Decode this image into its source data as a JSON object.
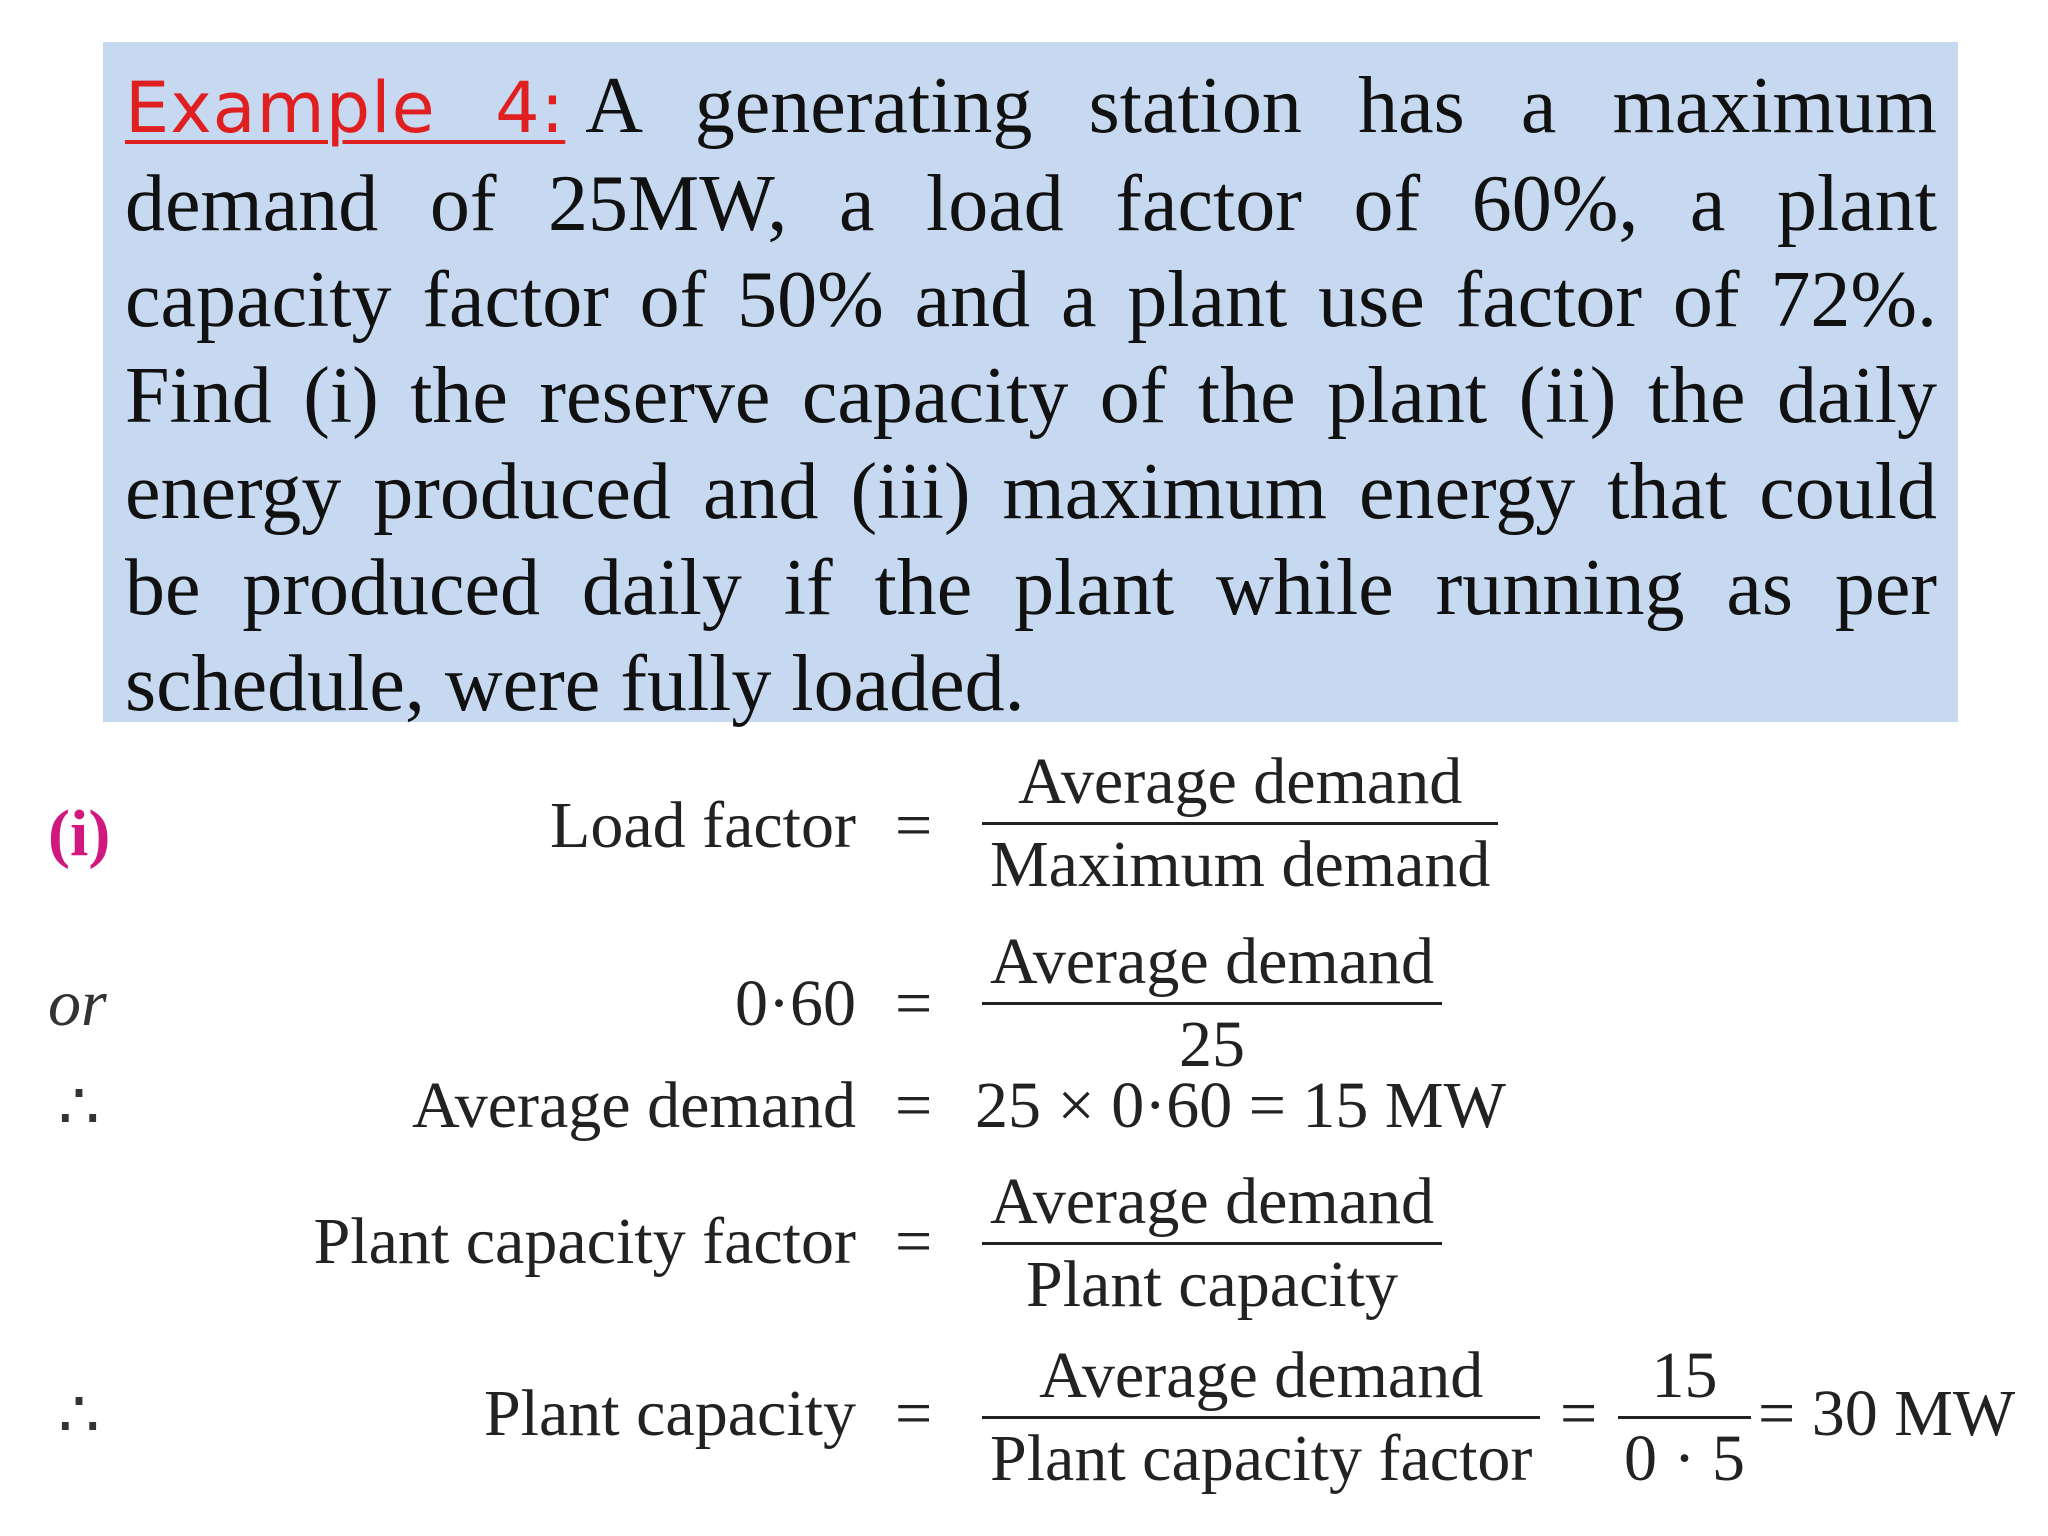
{
  "problem": {
    "label": "Example 4:",
    "text": "A generating station has a maximum demand of 25MW, a load factor of 60%, a plant capacity factor of 50% and a plant use factor of 72%. Find (i) the reserve capacity of the plant (ii) the daily energy produced and (iii) maximum energy that could be produced daily if the plant while running as per schedule, were fully loaded."
  },
  "solution": {
    "part_marker": "(i)",
    "or_label": "or",
    "therefore_symbol": "∴",
    "equals": "=",
    "lines": [
      {
        "lhs": "Load factor",
        "num": "Average demand",
        "den": "Maximum demand"
      },
      {
        "lhs": "0·60",
        "num": "Average demand",
        "den": "25"
      },
      {
        "lhs": "Average demand",
        "rhs": "25 × 0·60 = 15 MW"
      },
      {
        "lhs": "Plant capacity factor",
        "num": "Average demand",
        "den": "Plant capacity"
      },
      {
        "lhs": "Plant capacity",
        "num": "Average demand",
        "den": "Plant capacity factor",
        "num2": "15",
        "den2": "0 · 5",
        "result": "= 30 MW"
      }
    ]
  }
}
